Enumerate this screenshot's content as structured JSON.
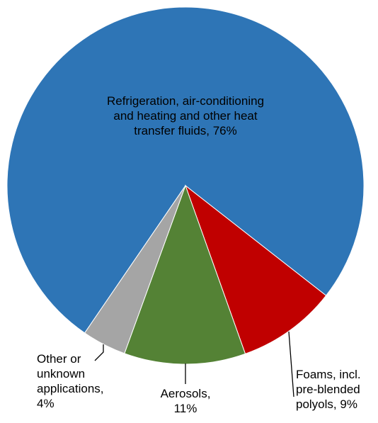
{
  "chart_data": {
    "type": "pie",
    "labels": [
      "Refrigeration, air-conditioning and heating and other heat transfer fluids, 76%",
      "Foams, incl. pre-blended polyols, 9%",
      "Aerosols, 11%",
      "Other or unknown applications, 4%"
    ],
    "values": [
      76,
      9,
      11,
      4
    ],
    "colors": [
      "#2e75b6",
      "#c00000",
      "#548235",
      "#a5a5a5"
    ]
  }
}
